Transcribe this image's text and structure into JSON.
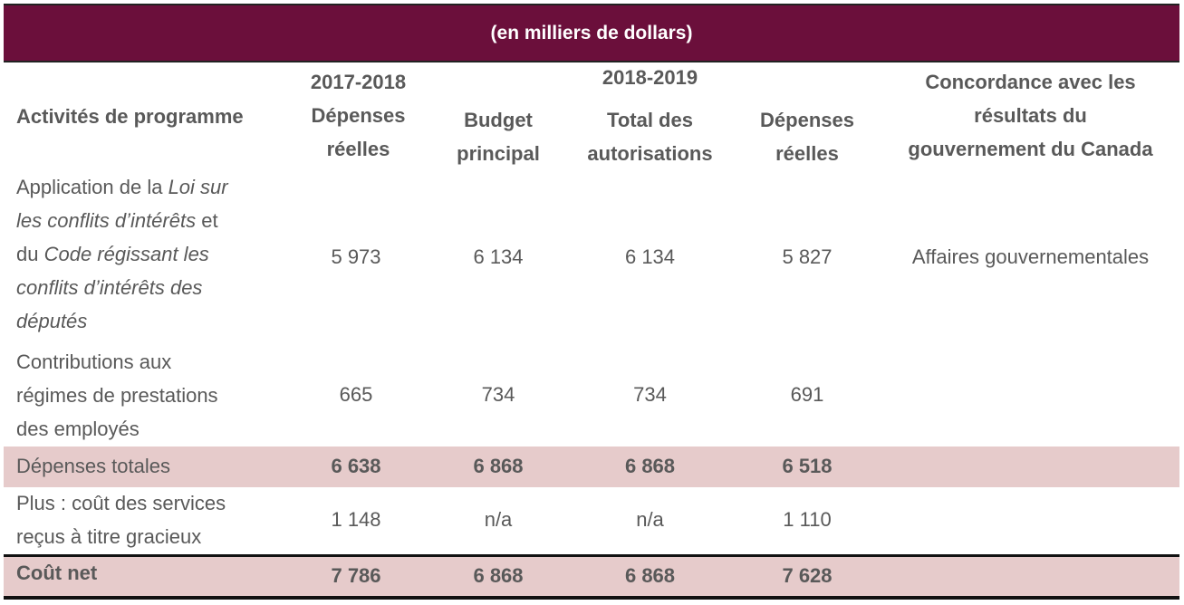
{
  "title": "(en milliers de dollars)",
  "headers": {
    "activities": "Activités de programme",
    "year1": "2017-2018",
    "year1_actual": [
      "Dépenses",
      "réelles"
    ],
    "year2": "2018-2019",
    "budget": [
      "Budget",
      "principal"
    ],
    "total_auth": [
      "Total des",
      "autorisations"
    ],
    "year2_actual": [
      "Dépenses",
      "réelles"
    ],
    "concordance": [
      "Concordance avec les",
      "résultats du",
      "gouvernement du Canada"
    ]
  },
  "rows": [
    {
      "label_parts": [
        "Application de la ",
        "Loi sur",
        "les conflits d’intérêts",
        " et",
        "du ",
        "Code régissant les",
        "conflits d’intérêts des",
        "députés"
      ],
      "values": [
        "5 973",
        "6 134",
        "6 134",
        "5 827"
      ],
      "concordance": "Affaires gouvernementales"
    },
    {
      "label_lines": [
        "Contributions aux",
        "régimes de prestations",
        "des employés"
      ],
      "values": [
        "665",
        "734",
        "734",
        "691"
      ],
      "concordance": ""
    },
    {
      "label": "Dépenses totales",
      "values": [
        "6 638",
        "6 868",
        "6 868",
        "6 518"
      ]
    },
    {
      "label_lines": [
        "Plus : coût des services",
        "reçus à titre gracieux"
      ],
      "values": [
        "1 148",
        "n/a",
        "n/a",
        "1 110"
      ]
    },
    {
      "label": "Coût net",
      "values": [
        "7 786",
        "6 868",
        "6 868",
        "7 628"
      ]
    }
  ],
  "colors": {
    "title_bg": "#6b0f3b",
    "band_bg": "#e6cbcb",
    "text": "#595959"
  }
}
